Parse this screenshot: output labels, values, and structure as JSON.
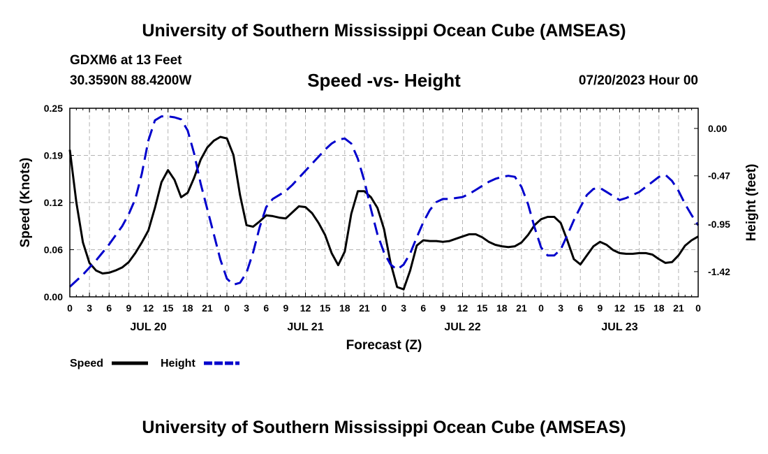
{
  "header": {
    "title": "University of Southern Mississippi Ocean Cube (AMSEAS)",
    "station": "GDXM6 at 13 Feet",
    "coordinates": "30.3590N  88.4200W",
    "date": "07/20/2023 Hour 00"
  },
  "footer": {
    "title": "University of Southern Mississippi Ocean Cube (AMSEAS)"
  },
  "chart_data": {
    "type": "line",
    "title": "Speed -vs- Height",
    "xlabel": "Forecast (Z)",
    "ylabel": "Speed (Knots)",
    "y2label": "Height (feet)",
    "hours_range": [
      0,
      96
    ],
    "ylim": [
      0,
      0.25
    ],
    "y2lim": [
      -1.67,
      0.2
    ],
    "grid": true,
    "x_tick_labels": [
      "0",
      "3",
      "6",
      "9",
      "12",
      "15",
      "18",
      "21",
      "0",
      "3",
      "6",
      "9",
      "12",
      "15",
      "18",
      "21",
      "0",
      "3",
      "6",
      "9",
      "12",
      "15",
      "18",
      "21",
      "0",
      "3",
      "6",
      "9",
      "12",
      "15",
      "18",
      "21",
      "0"
    ],
    "day_labels": [
      {
        "hour": 12,
        "label": "JUL 20"
      },
      {
        "hour": 36,
        "label": "JUL 21"
      },
      {
        "hour": 60,
        "label": "JUL 22"
      },
      {
        "hour": 84,
        "label": "JUL 23"
      }
    ],
    "y_ticks": [
      "0.00",
      "0.06",
      "0.12",
      "0.19",
      "0.25"
    ],
    "y2_ticks": [
      "0.00",
      "-0.47",
      "-0.95",
      "-1.42"
    ],
    "legend": [
      {
        "name": "Speed",
        "color": "#000000",
        "dash": "solid"
      },
      {
        "name": "Height",
        "color": "#0000cc",
        "dash": "dashed"
      }
    ],
    "series": [
      {
        "name": "Speed",
        "axis": "left",
        "color": "#000000",
        "x": [
          0,
          1,
          2,
          3,
          4,
          5,
          6,
          7,
          8,
          9,
          10,
          11,
          12,
          13,
          14,
          15,
          16,
          17,
          18,
          19,
          20,
          21,
          22,
          23,
          24,
          25,
          26,
          27,
          28,
          29,
          30,
          31,
          32,
          33,
          34,
          35,
          36,
          37,
          38,
          39,
          40,
          41,
          42,
          43,
          44,
          45,
          46,
          47,
          48,
          49,
          50,
          51,
          52,
          53,
          54,
          55,
          56,
          57,
          58,
          59,
          60,
          61,
          62,
          63,
          64,
          65,
          66,
          67,
          68,
          69,
          70,
          71,
          72,
          73,
          74,
          75,
          76,
          77,
          78,
          79,
          80,
          81,
          82,
          83,
          84,
          85,
          86,
          87,
          88,
          89,
          90,
          91,
          92,
          93,
          94,
          95,
          96
        ],
        "values": [
          0.195,
          0.125,
          0.072,
          0.045,
          0.035,
          0.031,
          0.032,
          0.035,
          0.039,
          0.046,
          0.058,
          0.072,
          0.088,
          0.118,
          0.152,
          0.168,
          0.155,
          0.132,
          0.138,
          0.158,
          0.182,
          0.198,
          0.207,
          0.212,
          0.21,
          0.188,
          0.135,
          0.095,
          0.093,
          0.1,
          0.108,
          0.107,
          0.105,
          0.104,
          0.112,
          0.12,
          0.119,
          0.111,
          0.098,
          0.082,
          0.058,
          0.042,
          0.06,
          0.11,
          0.14,
          0.14,
          0.132,
          0.118,
          0.09,
          0.045,
          0.013,
          0.01,
          0.035,
          0.068,
          0.075,
          0.074,
          0.074,
          0.073,
          0.074,
          0.077,
          0.08,
          0.083,
          0.083,
          0.079,
          0.073,
          0.069,
          0.067,
          0.066,
          0.067,
          0.072,
          0.082,
          0.095,
          0.103,
          0.106,
          0.106,
          0.098,
          0.075,
          0.05,
          0.043,
          0.055,
          0.067,
          0.073,
          0.069,
          0.062,
          0.058,
          0.057,
          0.057,
          0.058,
          0.058,
          0.056,
          0.05,
          0.045,
          0.046,
          0.055,
          0.068,
          0.075,
          0.08
        ]
      },
      {
        "name": "Height",
        "axis": "right",
        "color": "#0000cc",
        "x": [
          0,
          1,
          2,
          3,
          4,
          5,
          6,
          7,
          8,
          9,
          10,
          11,
          12,
          13,
          14,
          15,
          16,
          17,
          18,
          19,
          20,
          21,
          22,
          23,
          24,
          25,
          26,
          27,
          28,
          29,
          30,
          31,
          32,
          33,
          34,
          35,
          36,
          37,
          38,
          39,
          40,
          41,
          42,
          43,
          44,
          45,
          46,
          47,
          48,
          49,
          50,
          51,
          52,
          53,
          54,
          55,
          56,
          57,
          58,
          59,
          60,
          61,
          62,
          63,
          64,
          65,
          66,
          67,
          68,
          69,
          70,
          71,
          72,
          73,
          74,
          75,
          76,
          77,
          78,
          79,
          80,
          81,
          82,
          83,
          84,
          85,
          86,
          87,
          88,
          89,
          90,
          91,
          92,
          93,
          94,
          95,
          96
        ],
        "values": [
          -1.57,
          -1.51,
          -1.45,
          -1.38,
          -1.31,
          -1.23,
          -1.15,
          -1.06,
          -0.97,
          -0.85,
          -0.7,
          -0.45,
          -0.12,
          0.08,
          0.12,
          0.12,
          0.11,
          0.09,
          -0.02,
          -0.25,
          -0.55,
          -0.8,
          -1.05,
          -1.3,
          -1.49,
          -1.55,
          -1.53,
          -1.43,
          -1.23,
          -0.98,
          -0.78,
          -0.7,
          -0.66,
          -0.62,
          -0.56,
          -0.49,
          -0.42,
          -0.35,
          -0.28,
          -0.21,
          -0.15,
          -0.11,
          -0.1,
          -0.15,
          -0.3,
          -0.52,
          -0.8,
          -1.05,
          -1.23,
          -1.35,
          -1.4,
          -1.35,
          -1.24,
          -1.08,
          -0.93,
          -0.81,
          -0.73,
          -0.7,
          -0.7,
          -0.69,
          -0.68,
          -0.65,
          -0.61,
          -0.57,
          -0.53,
          -0.5,
          -0.48,
          -0.47,
          -0.48,
          -0.58,
          -0.75,
          -0.98,
          -1.18,
          -1.26,
          -1.26,
          -1.2,
          -1.06,
          -0.91,
          -0.78,
          -0.66,
          -0.6,
          -0.59,
          -0.63,
          -0.67,
          -0.71,
          -0.69,
          -0.66,
          -0.63,
          -0.58,
          -0.53,
          -0.48,
          -0.46,
          -0.52,
          -0.62,
          -0.75,
          -0.86,
          -0.96
        ]
      }
    ]
  }
}
